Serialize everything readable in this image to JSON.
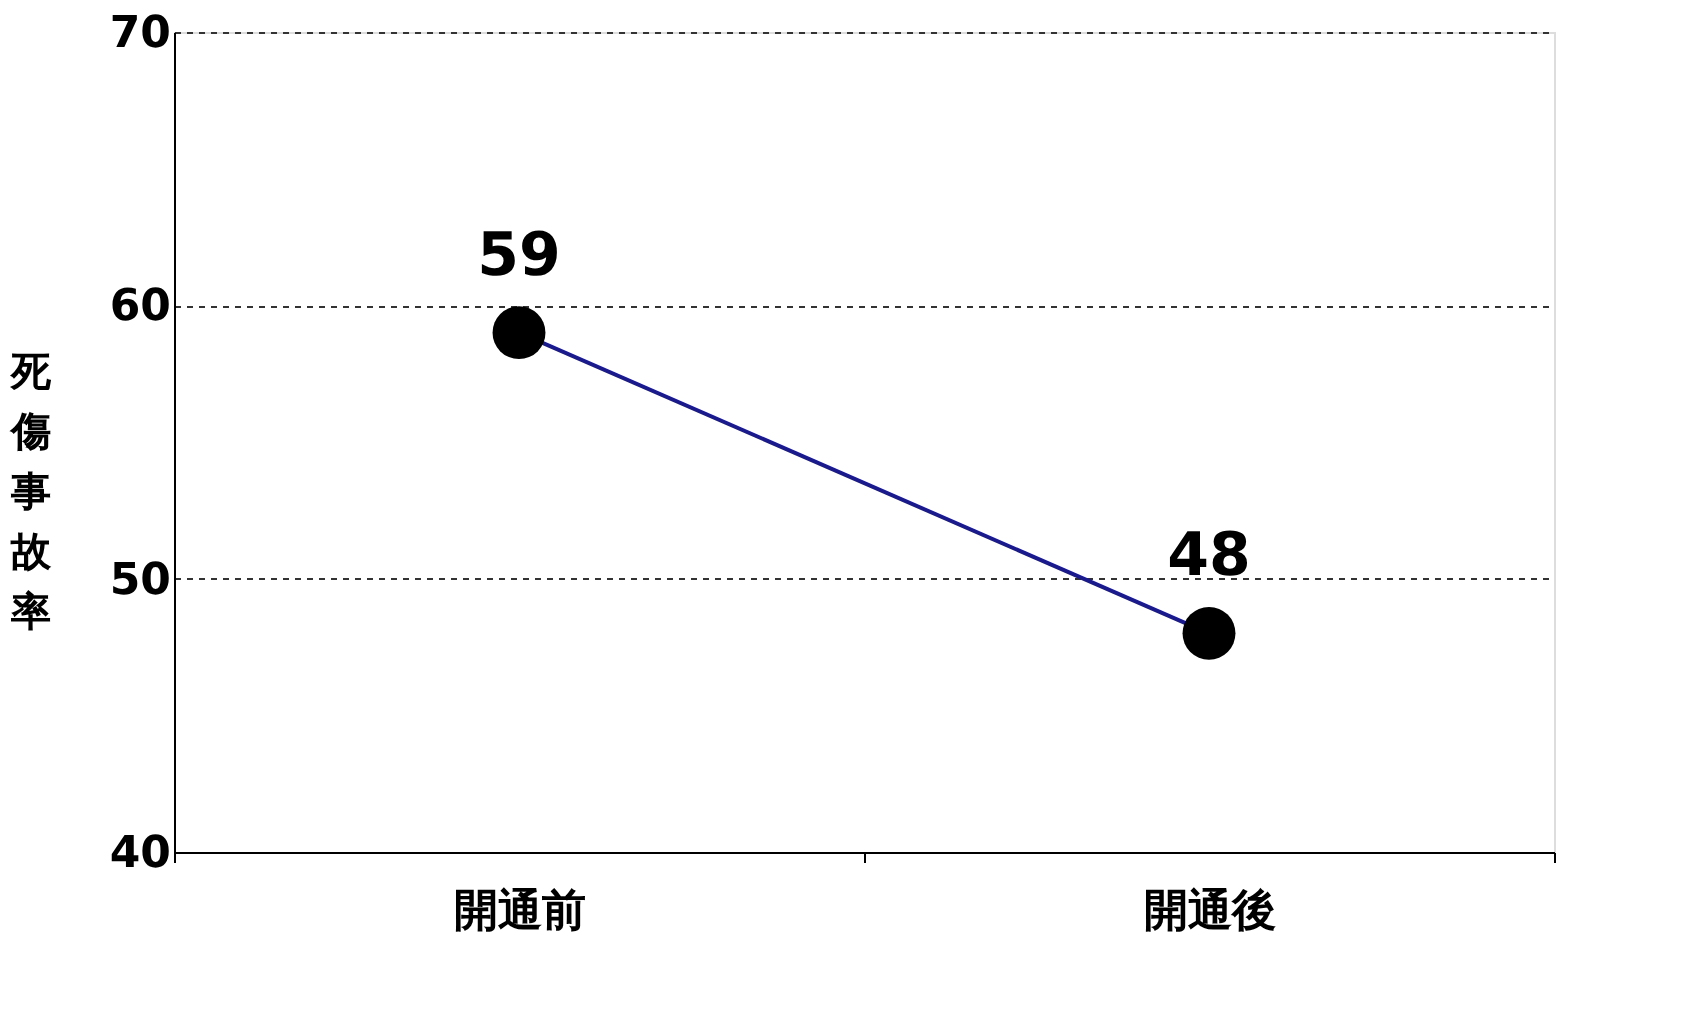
{
  "chart_data": {
    "type": "line",
    "ylabel": "死傷事故率",
    "categories": [
      "開通前",
      "開通後"
    ],
    "series": [
      {
        "color": "#1a1a8c",
        "values": [
          59,
          48
        ]
      }
    ],
    "ylim": [
      40,
      70
    ],
    "yticks": [
      40,
      50,
      60,
      70
    ],
    "grid": "y",
    "marker": "circle",
    "line_style": "solid",
    "data_labels": true
  }
}
